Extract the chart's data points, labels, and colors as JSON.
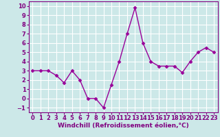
{
  "x": [
    0,
    1,
    2,
    3,
    4,
    5,
    6,
    7,
    8,
    9,
    10,
    11,
    12,
    13,
    14,
    15,
    16,
    17,
    18,
    19,
    20,
    21,
    22,
    23
  ],
  "y": [
    3.0,
    3.0,
    3.0,
    2.5,
    1.7,
    3.0,
    2.0,
    0.0,
    0.0,
    -1.0,
    1.5,
    4.0,
    7.0,
    9.8,
    6.0,
    4.0,
    3.5,
    3.5,
    3.5,
    2.8,
    4.0,
    5.0,
    5.5,
    5.0
  ],
  "line_color": "#990099",
  "marker": "D",
  "markersize": 2.5,
  "linewidth": 1.0,
  "xlabel": "Windchill (Refroidissement éolien,°C)",
  "xlabel_fontsize": 6.5,
  "ylabel_ticks": [
    -1,
    0,
    1,
    2,
    3,
    4,
    5,
    6,
    7,
    8,
    9,
    10
  ],
  "xticks": [
    0,
    1,
    2,
    3,
    4,
    5,
    6,
    7,
    8,
    9,
    10,
    11,
    12,
    13,
    14,
    15,
    16,
    17,
    18,
    19,
    20,
    21,
    22,
    23
  ],
  "ylim": [
    -1.5,
    10.5
  ],
  "xlim": [
    -0.5,
    23.5
  ],
  "bg_color": "#cce8e8",
  "grid_color": "#ffffff",
  "tick_fontsize": 6.0,
  "label_color": "#800080",
  "spine_color": "#800080"
}
